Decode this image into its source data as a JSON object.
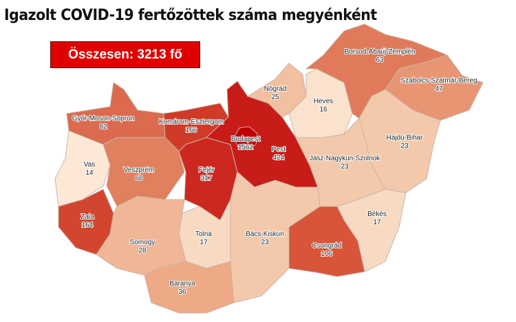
{
  "title": "Igazolt COVID-19 fertőzöttek száma megyénként",
  "total_label": "Összesen: 3213 fő",
  "counties": [
    {
      "name": "Győr-Moson-Sopron",
      "value": "82",
      "color": "#dc6a4e"
    },
    {
      "name": "Vas",
      "value": "14",
      "color": "#fde8d6"
    },
    {
      "name": "Zala",
      "value": "164",
      "color": "#d3452e"
    },
    {
      "name": "Veszprém",
      "value": "60",
      "color": "#e0805f"
    },
    {
      "name": "Komárom-Esztergom",
      "value": "166",
      "color": "#d03b28"
    },
    {
      "name": "Fejér",
      "value": "317",
      "color": "#cc2820"
    },
    {
      "name": "Pest",
      "value": "424",
      "color": "#c81c18"
    },
    {
      "name": "Budapest",
      "value": "1562",
      "color": "#c00000"
    },
    {
      "name": "Nógrád",
      "value": "25",
      "color": "#f2c0a0"
    },
    {
      "name": "Heves",
      "value": "16",
      "color": "#fbe2cc"
    },
    {
      "name": "Borsod-Abaúj-Zemplén",
      "value": "63",
      "color": "#e07a5a"
    },
    {
      "name": "Szabolcs-Szatmár-Bereg",
      "value": "47",
      "color": "#e89574"
    },
    {
      "name": "Hajdú-Bihar",
      "value": "23",
      "color": "#f4c9ab"
    },
    {
      "name": "Jász-Nagykun-Szolnok",
      "value": "23",
      "color": "#f4c9ab"
    },
    {
      "name": "Békés",
      "value": "17",
      "color": "#f8dac2"
    },
    {
      "name": "Csongrád",
      "value": "106",
      "color": "#d8553a"
    },
    {
      "name": "Bács-Kiskun",
      "value": "23",
      "color": "#f4c9ab"
    },
    {
      "name": "Tolna",
      "value": "17",
      "color": "#f8dac2"
    },
    {
      "name": "Somogy",
      "value": "28",
      "color": "#f0b696"
    },
    {
      "name": "Baranya",
      "value": "36",
      "color": "#eeaa86"
    }
  ]
}
